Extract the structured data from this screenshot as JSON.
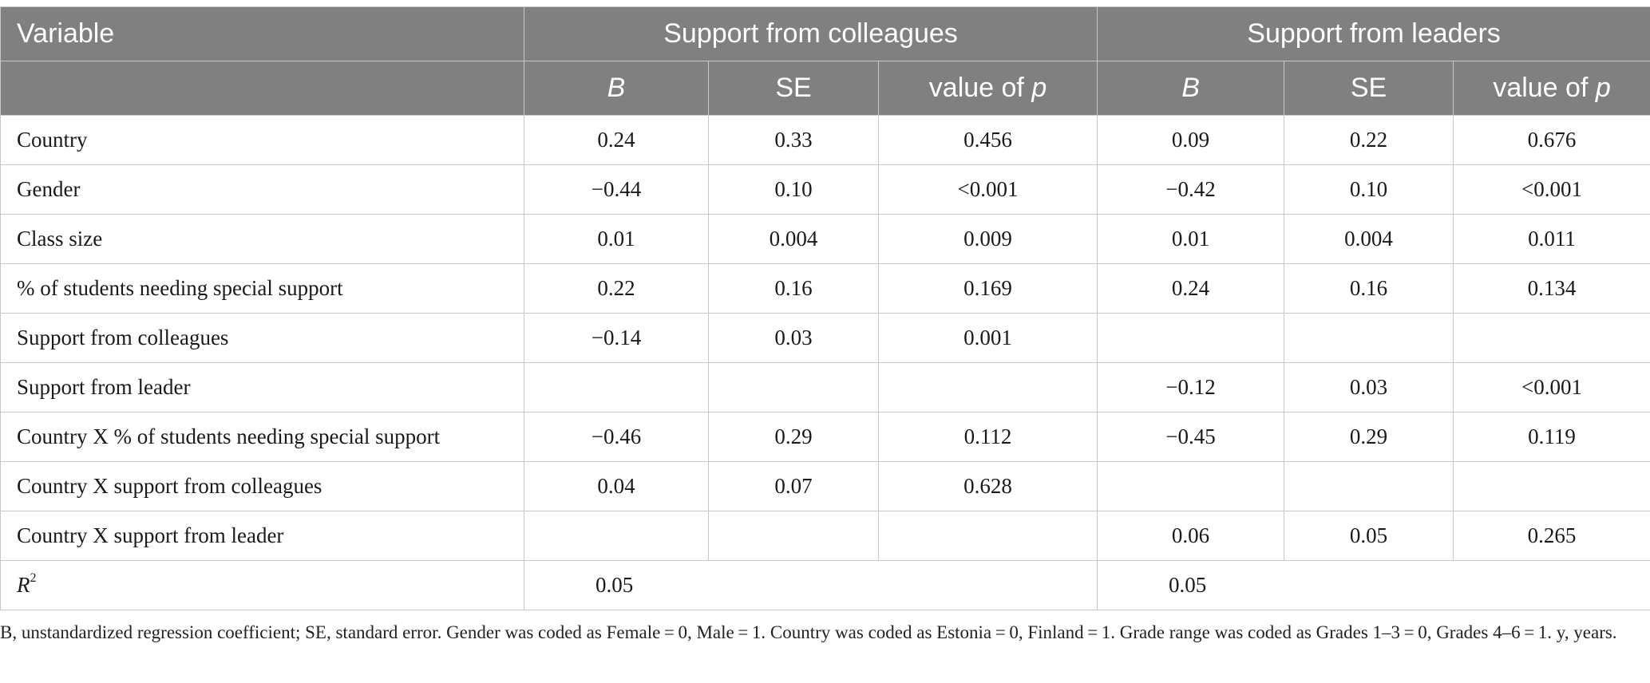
{
  "table": {
    "header_row1": {
      "variable": "Variable",
      "group1": "Support from colleagues",
      "group2": "Support from leaders"
    },
    "header_row2": {
      "g1_b": "B",
      "g1_se": "SE",
      "g1_p_prefix": "value of ",
      "g1_p_var": "p",
      "g2_b": "B",
      "g2_se": "SE",
      "g2_p_prefix": "value of ",
      "g2_p_var": "p"
    },
    "rows": [
      {
        "label": "Country",
        "b1": "0.24",
        "se1": "0.33",
        "p1": "0.456",
        "b2": "0.09",
        "se2": "0.22",
        "p2": "0.676"
      },
      {
        "label": "Gender",
        "b1": "−0.44",
        "se1": "0.10",
        "p1": "<0.001",
        "b2": "−0.42",
        "se2": "0.10",
        "p2": "<0.001"
      },
      {
        "label": "Class size",
        "b1": "0.01",
        "se1": "0.004",
        "p1": "0.009",
        "b2": "0.01",
        "se2": "0.004",
        "p2": "0.011"
      },
      {
        "label": "% of students needing special support",
        "b1": "0.22",
        "se1": "0.16",
        "p1": "0.169",
        "b2": "0.24",
        "se2": "0.16",
        "p2": "0.134"
      },
      {
        "label": "Support from colleagues",
        "b1": "−0.14",
        "se1": "0.03",
        "p1": "0.001",
        "b2": "",
        "se2": "",
        "p2": ""
      },
      {
        "label": "Support from leader",
        "b1": "",
        "se1": "",
        "p1": "",
        "b2": "−0.12",
        "se2": "0.03",
        "p2": "<0.001"
      },
      {
        "label": "Country X % of students needing special support",
        "b1": "−0.46",
        "se1": "0.29",
        "p1": "0.112",
        "b2": "−0.45",
        "se2": "0.29",
        "p2": "0.119"
      },
      {
        "label": "Country X support from colleagues",
        "b1": "0.04",
        "se1": "0.07",
        "p1": "0.628",
        "b2": "",
        "se2": "",
        "p2": ""
      },
      {
        "label": "Country X support from leader",
        "b1": "",
        "se1": "",
        "p1": "",
        "b2": "0.06",
        "se2": "0.05",
        "p2": "0.265"
      }
    ],
    "r2_row": {
      "label_base": "R",
      "label_sup": "2",
      "value1": "0.05",
      "value2": "0.05"
    }
  },
  "note": "B, unstandardized regression coefficient; SE, standard error. Gender was coded as Female = 0, Male = 1. Country was coded as Estonia = 0, Finland = 1. Grade range was coded as Grades 1–3 = 0, Grades 4–6 = 1. y, years."
}
